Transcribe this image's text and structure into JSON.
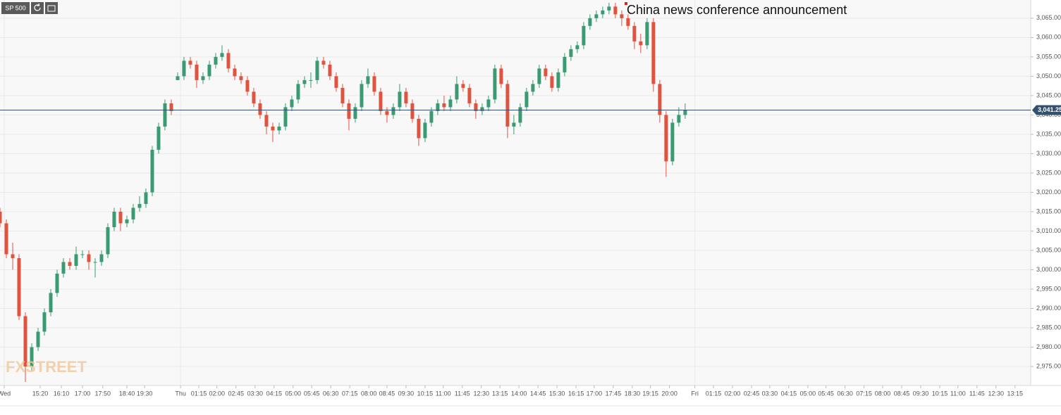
{
  "chart_data": {
    "type": "candlestick",
    "symbol": "SP 500",
    "watermark": "FXSTREET",
    "annotation": "China news conference announcement",
    "up_color": "#3a9b72",
    "down_color": "#e0533f",
    "grid": true,
    "ylim": [
      2970.1,
      3069.7
    ],
    "xlim": [
      0,
      2437
    ],
    "yticks": [
      {
        "value": 2975,
        "label": "2,975.00"
      },
      {
        "value": 2980,
        "label": "2,980.00"
      },
      {
        "value": 2985,
        "label": "2,985.00"
      },
      {
        "value": 2990,
        "label": "2,990.00"
      },
      {
        "value": 2995,
        "label": "2,995.00"
      },
      {
        "value": 3000,
        "label": "3,000.00"
      },
      {
        "value": 3005,
        "label": "3,005.00"
      },
      {
        "value": 3010,
        "label": "3,010.00"
      },
      {
        "value": 3015,
        "label": "3,015.00"
      },
      {
        "value": 3020,
        "label": "3,020.00"
      },
      {
        "value": 3025,
        "label": "3,025.00"
      },
      {
        "value": 3030,
        "label": "3,030.00"
      },
      {
        "value": 3035,
        "label": "3,035.00"
      },
      {
        "value": 3040,
        "label": "3,040.00"
      },
      {
        "value": 3045,
        "label": "3,045.00"
      },
      {
        "value": 3050,
        "label": "3,050.00"
      },
      {
        "value": 3055,
        "label": "3,055.00"
      },
      {
        "value": 3060,
        "label": "3,060.00"
      },
      {
        "value": 3065,
        "label": "3,065.00"
      }
    ],
    "xticks": [
      {
        "value": 10,
        "label": "Wed"
      },
      {
        "value": 95,
        "label": "15:20"
      },
      {
        "value": 145,
        "label": "16:10"
      },
      {
        "value": 195,
        "label": "17:00"
      },
      {
        "value": 243,
        "label": "17:50"
      },
      {
        "value": 300,
        "label": "18:40"
      },
      {
        "value": 342,
        "label": "19:30"
      },
      {
        "value": 427,
        "label": "Thu"
      },
      {
        "value": 470,
        "label": "01:15"
      },
      {
        "value": 513,
        "label": "02:00"
      },
      {
        "value": 558,
        "label": "02:45"
      },
      {
        "value": 603,
        "label": "03:30"
      },
      {
        "value": 648,
        "label": "04:15"
      },
      {
        "value": 693,
        "label": "05:00"
      },
      {
        "value": 737,
        "label": "05:45"
      },
      {
        "value": 782,
        "label": "06:30"
      },
      {
        "value": 827,
        "label": "07:15"
      },
      {
        "value": 872,
        "label": "08:00"
      },
      {
        "value": 915,
        "label": "08:45"
      },
      {
        "value": 960,
        "label": "09:30"
      },
      {
        "value": 1005,
        "label": "10:15"
      },
      {
        "value": 1048,
        "label": "11:00"
      },
      {
        "value": 1093,
        "label": "11:45"
      },
      {
        "value": 1138,
        "label": "12:30"
      },
      {
        "value": 1182,
        "label": "13:15"
      },
      {
        "value": 1227,
        "label": "14:00"
      },
      {
        "value": 1272,
        "label": "14:45"
      },
      {
        "value": 1317,
        "label": "15:30"
      },
      {
        "value": 1362,
        "label": "16:15"
      },
      {
        "value": 1405,
        "label": "17:00"
      },
      {
        "value": 1450,
        "label": "17:45"
      },
      {
        "value": 1495,
        "label": "18:30"
      },
      {
        "value": 1538,
        "label": "19:15"
      },
      {
        "value": 1583,
        "label": "20:00"
      },
      {
        "value": 1643,
        "label": "Fri"
      },
      {
        "value": 1687,
        "label": "01:15"
      },
      {
        "value": 1732,
        "label": "02:00"
      },
      {
        "value": 1777,
        "label": "02:45"
      },
      {
        "value": 1820,
        "label": "03:30"
      },
      {
        "value": 1865,
        "label": "04:15"
      },
      {
        "value": 1910,
        "label": "05:00"
      },
      {
        "value": 1953,
        "label": "05:45"
      },
      {
        "value": 1998,
        "label": "06:30"
      },
      {
        "value": 2043,
        "label": "07:15"
      },
      {
        "value": 2087,
        "label": "08:00"
      },
      {
        "value": 2132,
        "label": "08:45"
      },
      {
        "value": 2177,
        "label": "09:30"
      },
      {
        "value": 2222,
        "label": "10:15"
      },
      {
        "value": 2265,
        "label": "11:00"
      },
      {
        "value": 2310,
        "label": "11:45"
      },
      {
        "value": 2355,
        "label": "12:30"
      },
      {
        "value": 2400,
        "label": "13:15"
      }
    ],
    "last_price": {
      "value": 3041.25,
      "label": "3,041.25"
    },
    "x": [
      0,
      15,
      30,
      45,
      60,
      75,
      90,
      105,
      120,
      135,
      150,
      165,
      180,
      195,
      210,
      225,
      240,
      255,
      270,
      285,
      300,
      315,
      330,
      345,
      360,
      375,
      390,
      405,
      420,
      435,
      450,
      465,
      480,
      495,
      510,
      525,
      540,
      555,
      570,
      585,
      600,
      615,
      630,
      645,
      660,
      675,
      690,
      705,
      720,
      735,
      750,
      765,
      780,
      795,
      810,
      825,
      840,
      855,
      870,
      885,
      900,
      915,
      930,
      945,
      960,
      975,
      990,
      1005,
      1020,
      1035,
      1050,
      1065,
      1080,
      1095,
      1110,
      1125,
      1140,
      1155,
      1170,
      1185,
      1200,
      1215,
      1230,
      1245,
      1260,
      1275,
      1290,
      1305,
      1320,
      1335,
      1350,
      1365,
      1380,
      1395,
      1410,
      1425,
      1440,
      1455,
      1470,
      1485,
      1500,
      1515,
      1530,
      1545,
      1560,
      1575,
      1590,
      1605,
      1620
    ],
    "open": [
      3015,
      3012,
      3004,
      3003,
      2988,
      2975,
      2980,
      2984,
      2989,
      2994,
      2999,
      3002,
      3001,
      3004,
      3004,
      3002,
      3002,
      3004,
      3011,
      3015,
      3012,
      3013,
      3016,
      3017,
      3020,
      3031,
      3037,
      3043,
      3049,
      3050,
      3054,
      3053,
      3049,
      3050,
      3053,
      3055,
      3056,
      3052,
      3050,
      3049,
      3046,
      3043,
      3040,
      3037,
      3036,
      3037,
      3042,
      3044,
      3048,
      3049,
      3049,
      3054,
      3053,
      3050,
      3047,
      3043,
      3039,
      3042,
      3048,
      3050,
      3046,
      3041,
      3040,
      3042,
      3046,
      3043,
      3039,
      3034,
      3038,
      3041,
      3043,
      3042,
      3044,
      3048,
      3047,
      3043,
      3041,
      3042,
      3044,
      3052,
      3048,
      3037,
      3038,
      3042,
      3046,
      3048,
      3052,
      3050,
      3047,
      3051,
      3055,
      3057,
      3058,
      3063,
      3065,
      3066,
      3067,
      3068,
      3066,
      3065,
      3063,
      3059,
      3058,
      3064,
      3048,
      3040,
      3028,
      3038,
      3040
    ],
    "high": [
      3016,
      3013,
      3007,
      3004,
      2989,
      2981,
      2985,
      2990,
      2995,
      3000,
      3003,
      3003,
      3006,
      3005,
      3005,
      3003,
      3005,
      3012,
      3016,
      3016,
      3014,
      3017,
      3019,
      3021,
      3032,
      3038,
      3044,
      3044,
      3051,
      3055,
      3055,
      3054,
      3051,
      3054,
      3056,
      3058,
      3057,
      3053,
      3051,
      3050,
      3047,
      3044,
      3041,
      3038,
      3038,
      3043,
      3045,
      3049,
      3050,
      3051,
      3055,
      3055,
      3054,
      3051,
      3048,
      3044,
      3043,
      3049,
      3052,
      3051,
      3047,
      3042,
      3043,
      3048,
      3047,
      3044,
      3040,
      3039,
      3042,
      3044,
      3045,
      3045,
      3050,
      3049,
      3048,
      3044,
      3043,
      3045,
      3053,
      3053,
      3049,
      3040,
      3043,
      3047,
      3049,
      3053,
      3053,
      3051,
      3052,
      3056,
      3058,
      3059,
      3064,
      3066,
      3067,
      3068,
      3069,
      3069,
      3067,
      3066,
      3064,
      3061,
      3065,
      3065,
      3049,
      3041,
      3039,
      3042,
      3043
    ],
    "low": [
      3011,
      3003,
      3000,
      2987,
      2971,
      2974,
      2979,
      2983,
      2988,
      2993,
      2998,
      3000,
      3000,
      3003,
      3000,
      2998,
      3001,
      3003,
      3010,
      3010,
      3011,
      3012,
      3015,
      3016,
      3019,
      3030,
      3036,
      3040,
      3049,
      3049,
      3052,
      3047,
      3048,
      3049,
      3052,
      3054,
      3051,
      3049,
      3048,
      3045,
      3042,
      3039,
      3035,
      3033,
      3035,
      3036,
      3041,
      3043,
      3047,
      3047,
      3048,
      3052,
      3049,
      3046,
      3042,
      3036,
      3038,
      3041,
      3047,
      3045,
      3040,
      3038,
      3039,
      3041,
      3042,
      3038,
      3032,
      3033,
      3037,
      3040,
      3041,
      3041,
      3043,
      3046,
      3042,
      3039,
      3040,
      3041,
      3043,
      3047,
      3034,
      3035,
      3037,
      3041,
      3045,
      3047,
      3049,
      3046,
      3046,
      3050,
      3054,
      3056,
      3057,
      3062,
      3064,
      3065,
      3066,
      3065,
      3063,
      3062,
      3057,
      3056,
      3057,
      3046,
      3038,
      3024,
      3027,
      3037,
      3039
    ],
    "close": [
      3012,
      3004,
      3003,
      2988,
      2975,
      2980,
      2984,
      2989,
      2994,
      2999,
      3002,
      3001,
      3004,
      3004,
      3002,
      3002,
      3004,
      3011,
      3015,
      3012,
      3013,
      3016,
      3017,
      3020,
      3031,
      3037,
      3043,
      3041,
      3050,
      3054,
      3053,
      3049,
      3050,
      3053,
      3055,
      3056,
      3052,
      3050,
      3049,
      3046,
      3043,
      3040,
      3037,
      3036,
      3037,
      3042,
      3044,
      3048,
      3049,
      3049,
      3054,
      3053,
      3050,
      3047,
      3043,
      3039,
      3042,
      3048,
      3050,
      3046,
      3041,
      3040,
      3042,
      3046,
      3043,
      3039,
      3034,
      3038,
      3041,
      3043,
      3042,
      3044,
      3048,
      3047,
      3043,
      3041,
      3042,
      3044,
      3052,
      3048,
      3037,
      3038,
      3042,
      3046,
      3048,
      3052,
      3050,
      3047,
      3051,
      3055,
      3057,
      3058,
      3063,
      3065,
      3066,
      3067,
      3068,
      3066,
      3065,
      3063,
      3059,
      3058,
      3064,
      3048,
      3040,
      3028,
      3038,
      3040,
      3041.25
    ]
  }
}
